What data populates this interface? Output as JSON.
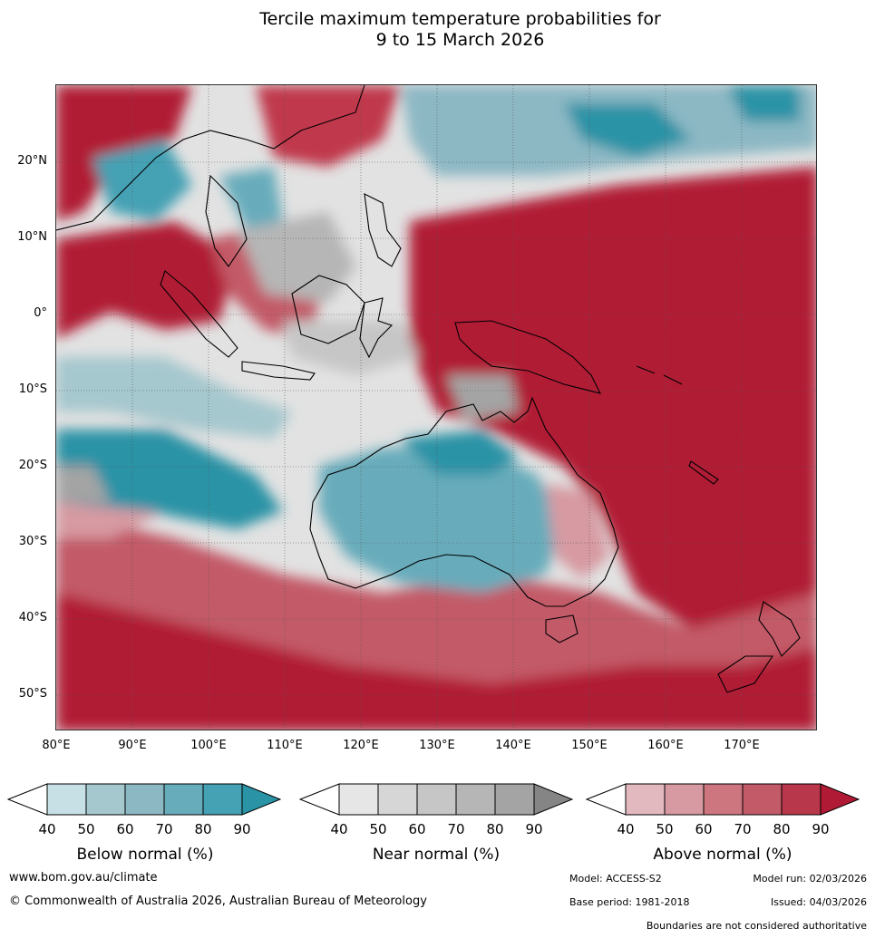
{
  "title": {
    "line1": "Tercile maximum temperature probabilities for",
    "line2": "9 to 15 March 2026"
  },
  "map": {
    "lat_labels": [
      "20°N",
      "10°N",
      "0°",
      "10°S",
      "20°S",
      "30°S",
      "40°S",
      "50°S"
    ],
    "lon_labels": [
      "80°E",
      "90°E",
      "100°E",
      "110°E",
      "120°E",
      "130°E",
      "140°E",
      "150°E",
      "160°E",
      "170°E"
    ],
    "colors": {
      "above_strong": "#b11a35",
      "above_mid": "#c85565",
      "above_light": "#dfb6bd",
      "below_strong": "#2a93a6",
      "below_mid": "#6aaab8",
      "below_light": "#c6e0e6",
      "near_strong": "#8c8c8c",
      "near_light": "#e5e5e5",
      "land_outline": "#000000",
      "boundaries": "#888888"
    }
  },
  "legends": [
    {
      "title": "Below normal (%)",
      "ticks": [
        "40",
        "50",
        "60",
        "70",
        "80",
        "90"
      ],
      "colors": [
        "#ffffff",
        "#c7e0e6",
        "#a5c7ce",
        "#8cb8c4",
        "#67acbb",
        "#45a1b4",
        "#2a93a6"
      ]
    },
    {
      "title": "Near normal (%)",
      "ticks": [
        "40",
        "50",
        "60",
        "70",
        "80",
        "90"
      ],
      "colors": [
        "#ffffff",
        "#e6e6e6",
        "#d6d6d6",
        "#c6c6c6",
        "#b6b6b6",
        "#a4a4a4",
        "#858585"
      ]
    },
    {
      "title": "Above normal (%)",
      "ticks": [
        "40",
        "50",
        "60",
        "70",
        "80",
        "90"
      ],
      "colors": [
        "#ffffff",
        "#e3b9c0",
        "#d79aa2",
        "#cd7680",
        "#c35a67",
        "#b9374a",
        "#b11a35"
      ]
    }
  ],
  "footer": {
    "website": "www.bom.gov.au/climate",
    "copyright": "© Commonwealth of Australia 2026, Australian Bureau of Meteorology",
    "model": "Model: ACCESS-S2",
    "model_run": "Model run: 02/03/2026",
    "base_period": "Base period: 1981-2018",
    "issued": "Issued: 04/03/2026",
    "disclaimer": "Boundaries are not considered authoritative"
  }
}
